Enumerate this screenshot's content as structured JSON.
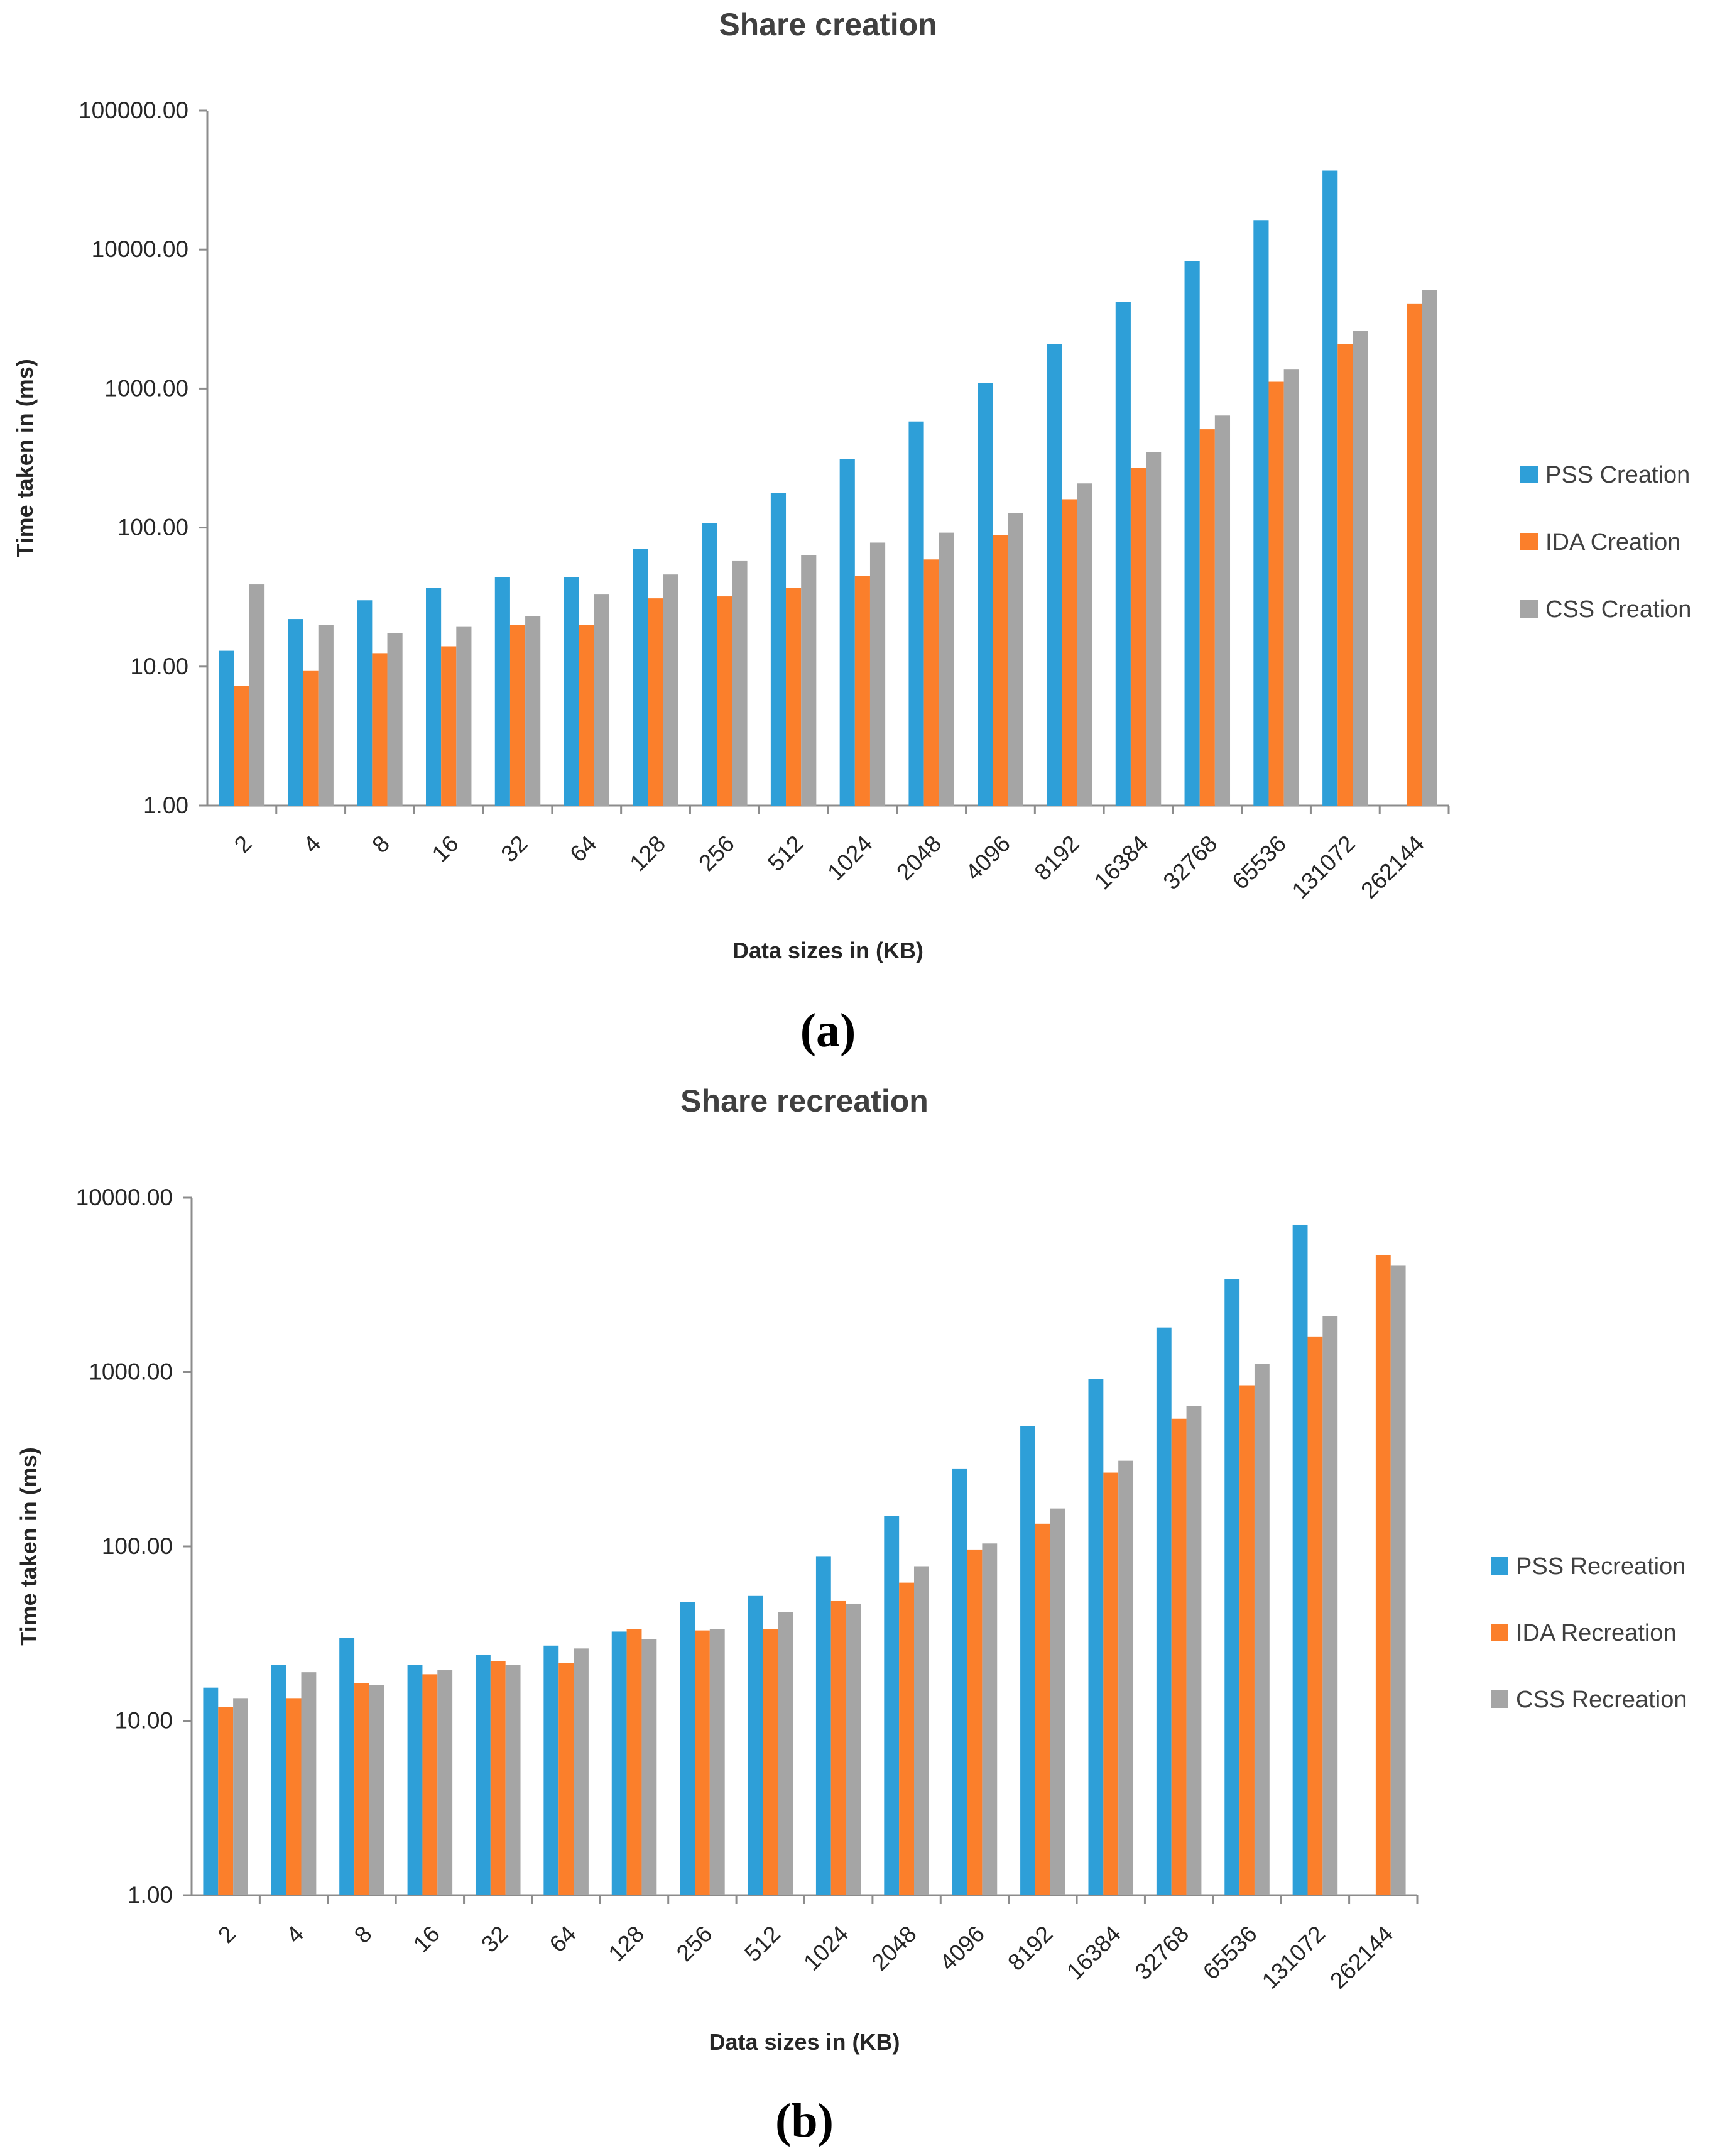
{
  "colors": {
    "pss": "#2e9fd8",
    "ida": "#fb7f2b",
    "css": "#a5a5a5",
    "axis": "#8c8c8c"
  },
  "chart_data": [
    {
      "type": "bar",
      "panel_label": "(a)",
      "title": "Share creation",
      "xlabel": "Data sizes in (KB)",
      "ylabel": "Time taken in (ms)",
      "yscale": "log",
      "ylim": [
        1,
        100000
      ],
      "yticks": [
        1,
        10,
        100,
        1000,
        10000,
        100000
      ],
      "ytick_labels": [
        "1.00",
        "10.00",
        "100.00",
        "1000.00",
        "10000.00",
        "100000.00"
      ],
      "legend_position": "right",
      "categories": [
        "2",
        "4",
        "8",
        "16",
        "32",
        "64",
        "128",
        "256",
        "512",
        "1024",
        "2048",
        "4096",
        "8192",
        "16384",
        "32768",
        "65536",
        "131072",
        "262144"
      ],
      "series": [
        {
          "name": "PSS Creation",
          "color_key": "pss",
          "values": [
            13,
            22,
            30,
            37,
            44,
            44,
            70,
            108,
            178,
            310,
            580,
            1100,
            2100,
            4200,
            8300,
            16300,
            37000,
            null
          ]
        },
        {
          "name": "IDA Creation",
          "color_key": "ida",
          "values": [
            7.3,
            9.3,
            12.5,
            14,
            20,
            20,
            31,
            32,
            37,
            45,
            59,
            88,
            160,
            270,
            510,
            1120,
            2100,
            4100
          ]
        },
        {
          "name": "CSS Creation",
          "color_key": "css",
          "values": [
            39,
            20,
            17.5,
            19.5,
            23,
            33,
            46,
            58,
            63,
            78,
            92,
            127,
            208,
            350,
            640,
            1370,
            2600,
            5100
          ]
        }
      ]
    },
    {
      "type": "bar",
      "panel_label": "(b)",
      "title": "Share recreation",
      "xlabel": "Data sizes in (KB)",
      "ylabel": "Time taken in (ms)",
      "yscale": "log",
      "ylim": [
        1,
        10000
      ],
      "yticks": [
        1,
        10,
        100,
        1000,
        10000
      ],
      "ytick_labels": [
        "1.00",
        "10.00",
        "100.00",
        "1000.00",
        "10000.00"
      ],
      "legend_position": "right",
      "categories": [
        "2",
        "4",
        "8",
        "16",
        "32",
        "64",
        "128",
        "256",
        "512",
        "1024",
        "2048",
        "4096",
        "8192",
        "16384",
        "32768",
        "65536",
        "131072",
        "262144"
      ],
      "series": [
        {
          "name": "PSS Recreation",
          "color_key": "pss",
          "values": [
            15.5,
            21,
            30,
            21,
            24,
            27,
            32.5,
            48,
            52,
            88,
            150,
            280,
            490,
            910,
            1800,
            3400,
            7000,
            null
          ]
        },
        {
          "name": "IDA Recreation",
          "color_key": "ida",
          "values": [
            12,
            13.5,
            16.5,
            18.5,
            22,
            21.5,
            33.5,
            33,
            33.5,
            49,
            62,
            96,
            135,
            265,
            540,
            840,
            1600,
            4700
          ]
        },
        {
          "name": "CSS Recreation",
          "color_key": "css",
          "values": [
            13.5,
            19,
            16,
            19.5,
            21,
            26,
            29.5,
            33.5,
            42,
            47,
            77,
            104,
            165,
            310,
            640,
            1110,
            2100,
            4100
          ]
        }
      ]
    }
  ]
}
